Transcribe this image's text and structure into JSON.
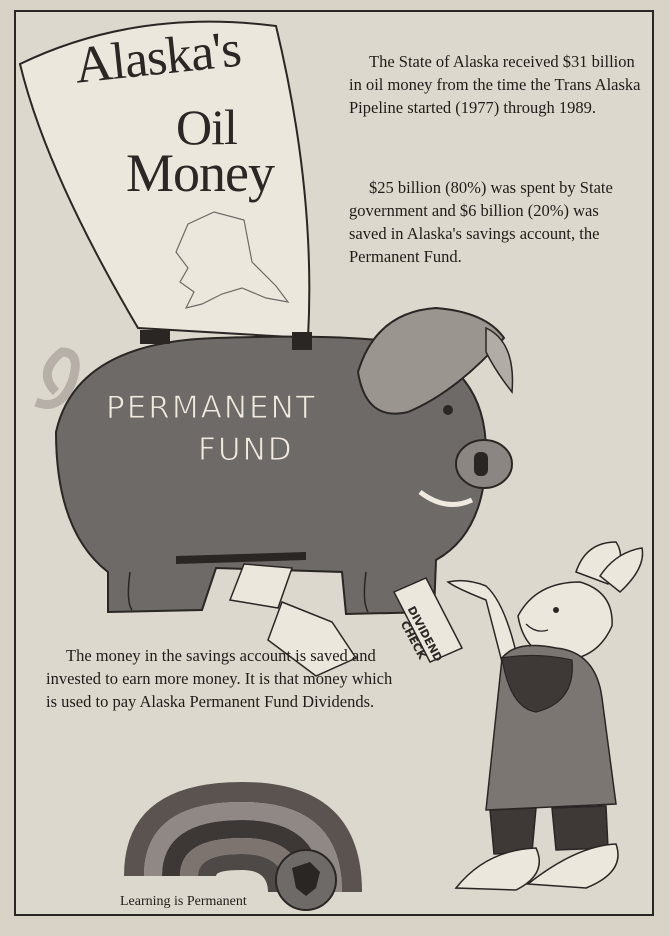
{
  "banner": {
    "line1": "Alaska's",
    "line2": "Oil",
    "line3": "Money"
  },
  "paragraphs": {
    "p1": "The State of Alaska received $31 billion in oil money from the time the Trans Alaska Pipeline started (1977) through 1989.",
    "p2": "$25 billion (80%) was spent by State government and $6 billion (20%) was saved in Alaska's savings account, the Permanent Fund.",
    "p3": "The money in the savings account is saved and invested to earn more money. It is that money which is used to pay Alaska Permanent Fund Dividends."
  },
  "pig": {
    "word1": "PERMANENT",
    "word2": "FUND"
  },
  "check": {
    "label": "DIVIDEND CHECK"
  },
  "footer": {
    "label": "Learning is Permanent"
  },
  "colors": {
    "page": "#ddd8cd",
    "pig": "#6e6a67",
    "ink": "#2a2624",
    "rainbow": [
      "#5b5350",
      "#7d7470",
      "#3d3836",
      "#8f8884",
      "#4e4846"
    ]
  }
}
